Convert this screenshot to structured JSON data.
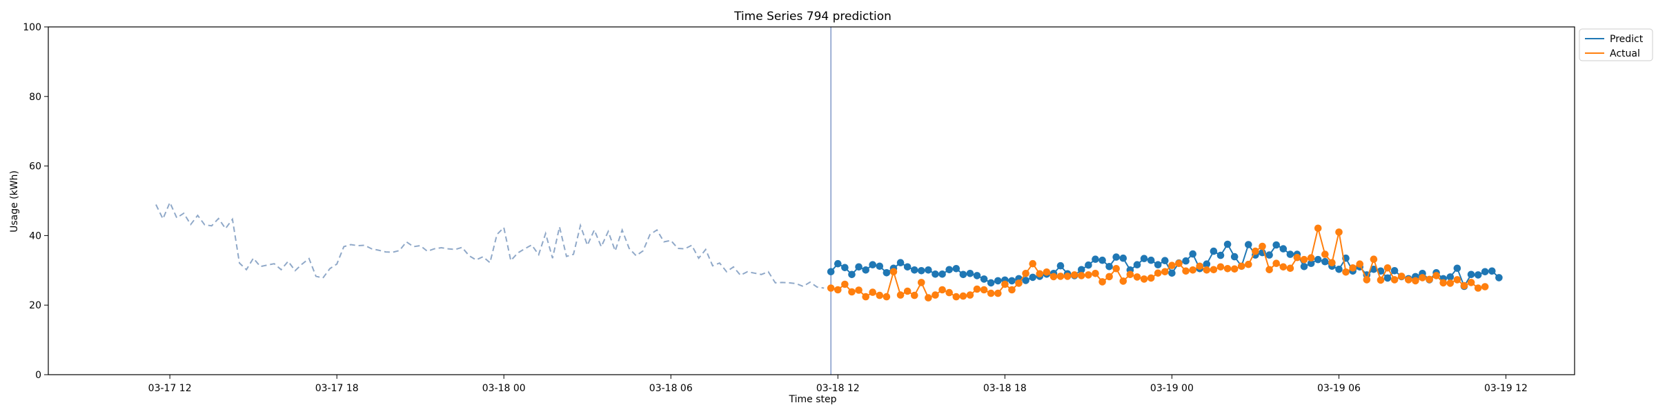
{
  "chart_data": {
    "type": "line",
    "title": "Time Series 794 prediction",
    "xlabel": "Time step",
    "ylabel": "Usage (kWh)",
    "ylim": [
      0,
      100
    ],
    "xlim": [
      "2023-03-17 07:38",
      "2023-03-19 14:28"
    ],
    "x_ticks": [
      {
        "t": "2023-03-17 12:00",
        "label": "03-17 12"
      },
      {
        "t": "2023-03-17 18:00",
        "label": "03-17 18"
      },
      {
        "t": "2023-03-18 00:00",
        "label": "03-18 00"
      },
      {
        "t": "2023-03-18 06:00",
        "label": "03-18 06"
      },
      {
        "t": "2023-03-18 12:00",
        "label": "03-18 12"
      },
      {
        "t": "2023-03-18 18:00",
        "label": "03-18 18"
      },
      {
        "t": "2023-03-19 00:00",
        "label": "03-19 00"
      },
      {
        "t": "2023-03-19 06:00",
        "label": "03-19 06"
      },
      {
        "t": "2023-03-19 12:00",
        "label": "03-19 12"
      }
    ],
    "y_ticks": [
      {
        "value": 0,
        "label": "0"
      },
      {
        "value": 20,
        "label": "20"
      },
      {
        "value": 40,
        "label": "40"
      },
      {
        "value": 60,
        "label": "60"
      },
      {
        "value": 80,
        "label": "80"
      },
      {
        "value": 100,
        "label": "100"
      }
    ],
    "grid": false,
    "legend_position": "outside-top-right",
    "series_interval_minutes": 15,
    "vertical_marker": "2023-03-18 11:45",
    "history": {
      "start": "2023-03-17 11:30",
      "color": "#8fa8c8",
      "style": "dashed",
      "values": [
        48.9,
        44.8,
        49.5,
        45.1,
        46.4,
        43.2,
        45.8,
        43.1,
        42.8,
        44.9,
        42.0,
        44.7,
        32.1,
        30.2,
        33.5,
        31.1,
        31.5,
        31.9,
        30.2,
        32.6,
        29.9,
        31.8,
        33.4,
        28.3,
        27.8,
        30.5,
        31.8,
        36.8,
        37.4,
        37.1,
        37.2,
        36.2,
        35.8,
        35.3,
        35.2,
        35.7,
        38.2,
        36.8,
        37.1,
        35.5,
        36.2,
        36.5,
        36.2,
        36.0,
        36.6,
        34.2,
        33.0,
        33.9,
        32.2,
        40.3,
        42.3,
        32.8,
        35.0,
        36.2,
        37.3,
        34.5,
        40.6,
        33.5,
        42.5,
        34.0,
        34.6,
        42.9,
        37.2,
        41.6,
        36.8,
        41.2,
        35.6,
        41.6,
        36.3,
        34.2,
        35.6,
        40.3,
        41.6,
        38.2,
        38.6,
        36.3,
        36.2,
        37.2,
        33.5,
        36.0,
        31.3,
        32.1,
        29.6,
        31.0,
        28.6,
        29.6,
        29.2,
        28.8,
        29.6,
        26.4,
        26.5,
        26.4,
        26.2,
        25.4,
        26.6,
        25.2,
        24.9
      ]
    },
    "series": [
      {
        "name": "Predict",
        "color": "#1f77b4",
        "start": "2023-03-18 11:45",
        "values": [
          29.6,
          31.9,
          30.8,
          28.8,
          31.0,
          30.1,
          31.6,
          31.2,
          29.3,
          30.6,
          32.2,
          31.0,
          30.1,
          29.9,
          30.1,
          28.9,
          28.9,
          30.2,
          30.5,
          28.8,
          29.1,
          28.5,
          27.5,
          26.4,
          27.0,
          27.2,
          27.0,
          27.6,
          27.1,
          28.0,
          28.3,
          28.9,
          29.1,
          31.3,
          29.0,
          28.5,
          30.2,
          31.5,
          33.2,
          32.9,
          31.1,
          33.8,
          33.5,
          30.1,
          31.6,
          33.4,
          32.9,
          31.6,
          32.8,
          29.2,
          32.1,
          32.7,
          34.7,
          30.5,
          31.8,
          35.5,
          34.3,
          37.5,
          33.9,
          31.2,
          37.4,
          34.4,
          35.1,
          34.4,
          37.3,
          36.2,
          34.6,
          34.6,
          31.1,
          32.0,
          33.1,
          32.5,
          31.2,
          30.3,
          33.5,
          29.8,
          31.0,
          28.7,
          30.3,
          29.8,
          27.8,
          29.9,
          28.2,
          27.6,
          28.2,
          29.1,
          27.3,
          29.3,
          27.6,
          28.1,
          30.6,
          25.4,
          28.8,
          28.7,
          29.6,
          29.8,
          27.9
        ]
      },
      {
        "name": "Actual",
        "color": "#ff7f0e",
        "start": "2023-03-18 11:45",
        "values": [
          24.9,
          24.4,
          26.0,
          23.8,
          24.3,
          22.4,
          23.7,
          22.8,
          22.4,
          29.6,
          22.9,
          24.0,
          22.8,
          26.5,
          22.1,
          22.9,
          24.4,
          23.6,
          22.4,
          22.6,
          22.9,
          24.6,
          24.4,
          23.4,
          23.4,
          26.0,
          24.4,
          26.3,
          29.1,
          31.9,
          29.0,
          29.5,
          28.2,
          28.3,
          28.3,
          28.7,
          28.5,
          28.7,
          29.1,
          26.7,
          28.2,
          30.5,
          26.9,
          28.8,
          28.1,
          27.5,
          27.8,
          29.2,
          29.6,
          31.4,
          32.0,
          29.8,
          30.1,
          31.2,
          30.1,
          30.2,
          31.0,
          30.5,
          30.4,
          31.2,
          31.7,
          35.5,
          36.9,
          30.2,
          32.0,
          31.0,
          30.6,
          33.7,
          33.1,
          33.6,
          42.1,
          34.6,
          32.2,
          41.0,
          29.5,
          30.7,
          31.8,
          27.3,
          33.2,
          27.2,
          30.7,
          27.3,
          28.3,
          27.3,
          27.0,
          27.9,
          27.4,
          28.5,
          26.4,
          26.3,
          27.3,
          25.6,
          26.5,
          24.9,
          25.3
        ]
      }
    ]
  }
}
